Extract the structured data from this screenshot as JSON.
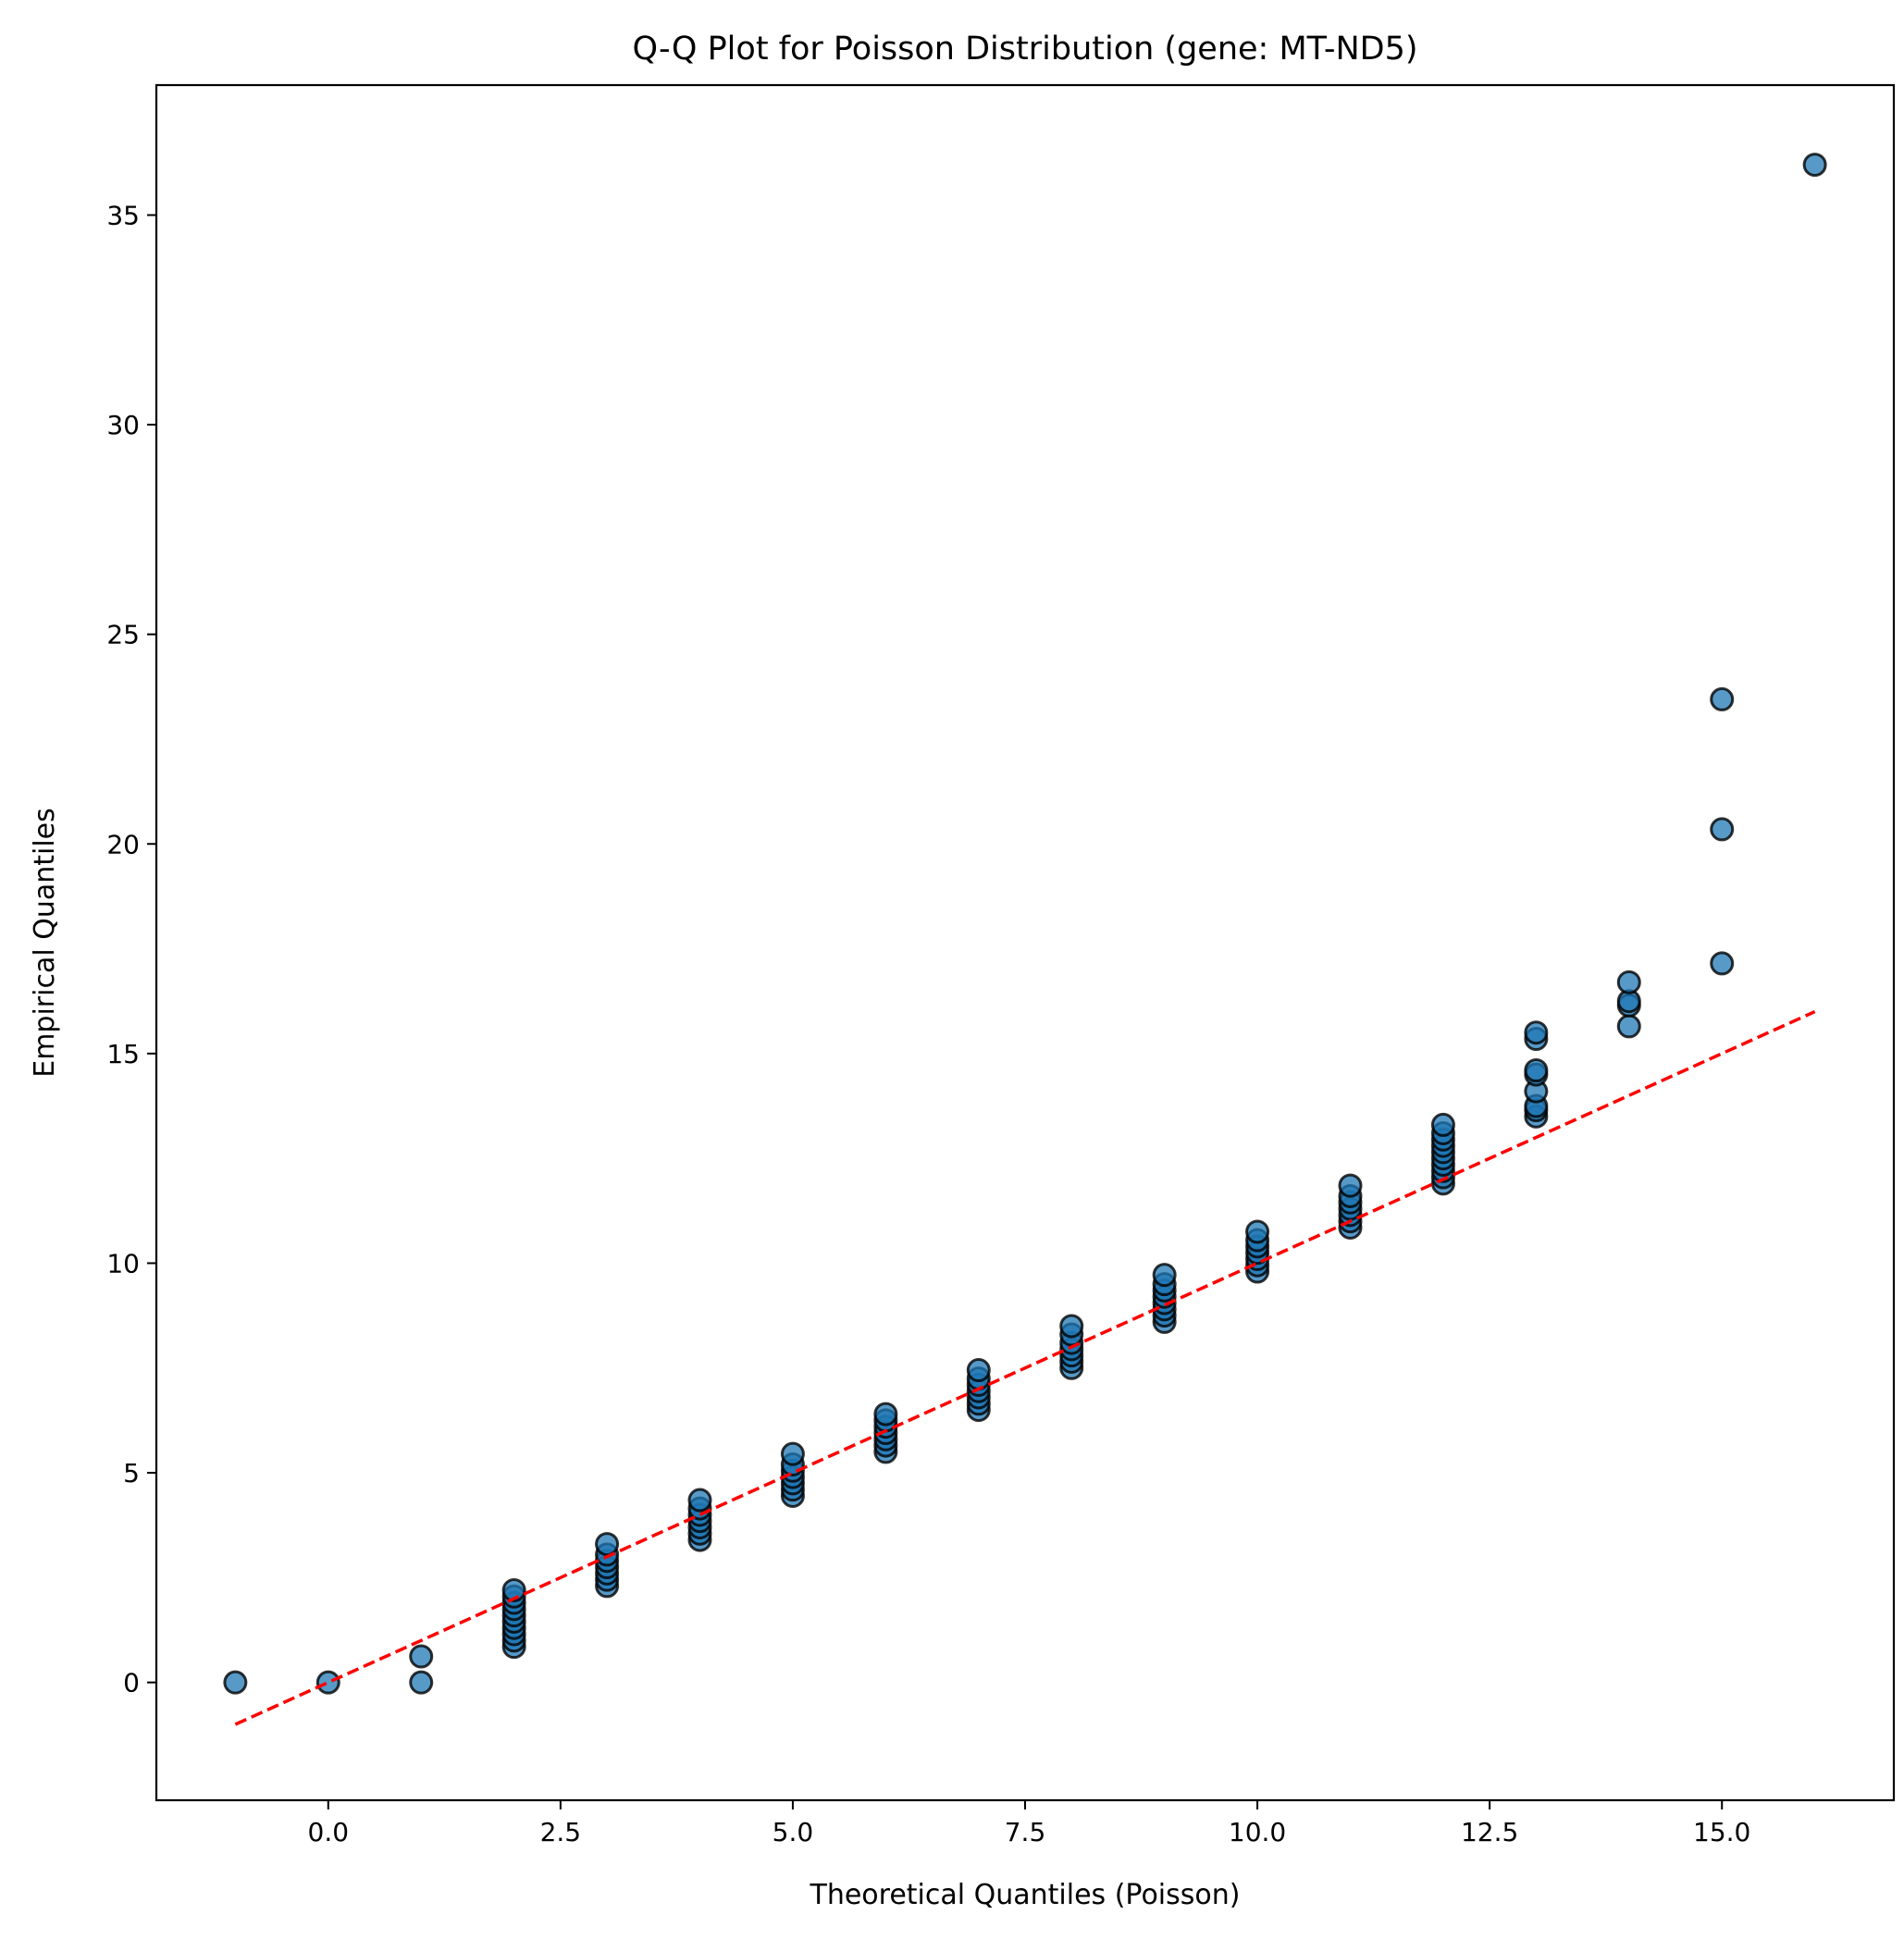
{
  "chart_data": {
    "type": "scatter",
    "title": "Q-Q Plot for Poisson Distribution (gene: MT-ND5)",
    "xlabel": "Theoretical Quantiles (Poisson)",
    "ylabel": "Empirical Quantiles",
    "xlim": [
      -1.85,
      16.85
    ],
    "ylim": [
      -2.81,
      38.1
    ],
    "x_ticks": [
      "0.0",
      "2.5",
      "5.0",
      "7.5",
      "10.0",
      "12.5",
      "15.0"
    ],
    "y_ticks": [
      "0",
      "5",
      "10",
      "15",
      "20",
      "25",
      "30",
      "35"
    ],
    "grid": false,
    "legend": "none",
    "colors": {
      "point_fill": "#1f77b4",
      "point_edge": "#000000",
      "reference_line": "#ff0000"
    },
    "series": [
      {
        "values": [
          {
            "x": -1,
            "y": 0.0
          },
          {
            "x": 0,
            "y": 0.0
          },
          {
            "x": 1,
            "y": 0.0
          },
          {
            "x": 1,
            "y": 0.62
          },
          {
            "x": 2,
            "y": 0.85
          },
          {
            "x": 2,
            "y": 1.0
          },
          {
            "x": 2,
            "y": 1.15
          },
          {
            "x": 2,
            "y": 1.3
          },
          {
            "x": 2,
            "y": 1.45
          },
          {
            "x": 2,
            "y": 1.6
          },
          {
            "x": 2,
            "y": 1.75
          },
          {
            "x": 2,
            "y": 1.9
          },
          {
            "x": 2,
            "y": 2.05
          },
          {
            "x": 2,
            "y": 2.2
          },
          {
            "x": 3,
            "y": 2.3
          },
          {
            "x": 3,
            "y": 2.45
          },
          {
            "x": 3,
            "y": 2.6
          },
          {
            "x": 3,
            "y": 2.75
          },
          {
            "x": 3,
            "y": 2.9
          },
          {
            "x": 3,
            "y": 3.05
          },
          {
            "x": 3,
            "y": 3.3
          },
          {
            "x": 4,
            "y": 3.4
          },
          {
            "x": 4,
            "y": 3.55
          },
          {
            "x": 4,
            "y": 3.7
          },
          {
            "x": 4,
            "y": 3.85
          },
          {
            "x": 4,
            "y": 4.0
          },
          {
            "x": 4,
            "y": 4.15
          },
          {
            "x": 4,
            "y": 4.35
          },
          {
            "x": 5,
            "y": 4.45
          },
          {
            "x": 5,
            "y": 4.6
          },
          {
            "x": 5,
            "y": 4.75
          },
          {
            "x": 5,
            "y": 4.9
          },
          {
            "x": 5,
            "y": 5.05
          },
          {
            "x": 5,
            "y": 5.2
          },
          {
            "x": 5,
            "y": 5.45
          },
          {
            "x": 6,
            "y": 5.5
          },
          {
            "x": 6,
            "y": 5.65
          },
          {
            "x": 6,
            "y": 5.8
          },
          {
            "x": 6,
            "y": 5.95
          },
          {
            "x": 6,
            "y": 6.1
          },
          {
            "x": 6,
            "y": 6.25
          },
          {
            "x": 6,
            "y": 6.4
          },
          {
            "x": 7,
            "y": 6.5
          },
          {
            "x": 7,
            "y": 6.65
          },
          {
            "x": 7,
            "y": 6.8
          },
          {
            "x": 7,
            "y": 6.95
          },
          {
            "x": 7,
            "y": 7.1
          },
          {
            "x": 7,
            "y": 7.25
          },
          {
            "x": 7,
            "y": 7.45
          },
          {
            "x": 8,
            "y": 7.5
          },
          {
            "x": 8,
            "y": 7.65
          },
          {
            "x": 8,
            "y": 7.8
          },
          {
            "x": 8,
            "y": 7.95
          },
          {
            "x": 8,
            "y": 8.1
          },
          {
            "x": 8,
            "y": 8.3
          },
          {
            "x": 8,
            "y": 8.5
          },
          {
            "x": 9,
            "y": 8.6
          },
          {
            "x": 9,
            "y": 8.75
          },
          {
            "x": 9,
            "y": 8.9
          },
          {
            "x": 9,
            "y": 9.05
          },
          {
            "x": 9,
            "y": 9.2
          },
          {
            "x": 9,
            "y": 9.35
          },
          {
            "x": 9,
            "y": 9.5
          },
          {
            "x": 9,
            "y": 9.72
          },
          {
            "x": 10,
            "y": 9.8
          },
          {
            "x": 10,
            "y": 9.95
          },
          {
            "x": 10,
            "y": 10.1
          },
          {
            "x": 10,
            "y": 10.25
          },
          {
            "x": 10,
            "y": 10.4
          },
          {
            "x": 10,
            "y": 10.55
          },
          {
            "x": 10,
            "y": 10.75
          },
          {
            "x": 11,
            "y": 10.85
          },
          {
            "x": 11,
            "y": 11.0
          },
          {
            "x": 11,
            "y": 11.15
          },
          {
            "x": 11,
            "y": 11.3
          },
          {
            "x": 11,
            "y": 11.45
          },
          {
            "x": 11,
            "y": 11.6
          },
          {
            "x": 11,
            "y": 11.85
          },
          {
            "x": 12,
            "y": 11.9
          },
          {
            "x": 12,
            "y": 12.05
          },
          {
            "x": 12,
            "y": 12.2
          },
          {
            "x": 12,
            "y": 12.35
          },
          {
            "x": 12,
            "y": 12.5
          },
          {
            "x": 12,
            "y": 12.65
          },
          {
            "x": 12,
            "y": 12.8
          },
          {
            "x": 12,
            "y": 12.95
          },
          {
            "x": 12,
            "y": 13.1
          },
          {
            "x": 12,
            "y": 13.3
          },
          {
            "x": 13,
            "y": 13.5
          },
          {
            "x": 13,
            "y": 13.65
          },
          {
            "x": 13,
            "y": 13.75
          },
          {
            "x": 13,
            "y": 14.1
          },
          {
            "x": 13,
            "y": 14.5
          },
          {
            "x": 13,
            "y": 14.6
          },
          {
            "x": 13,
            "y": 15.35
          },
          {
            "x": 13,
            "y": 15.5
          },
          {
            "x": 14,
            "y": 15.65
          },
          {
            "x": 14,
            "y": 16.15
          },
          {
            "x": 14,
            "y": 16.25
          },
          {
            "x": 14,
            "y": 16.7
          },
          {
            "x": 15,
            "y": 17.15
          },
          {
            "x": 15,
            "y": 20.35
          },
          {
            "x": 15,
            "y": 23.45
          },
          {
            "x": 16,
            "y": 36.2
          }
        ]
      }
    ],
    "reference_line": {
      "style": "dashed",
      "x": [
        -1,
        16
      ],
      "y": [
        -1,
        16
      ]
    }
  }
}
